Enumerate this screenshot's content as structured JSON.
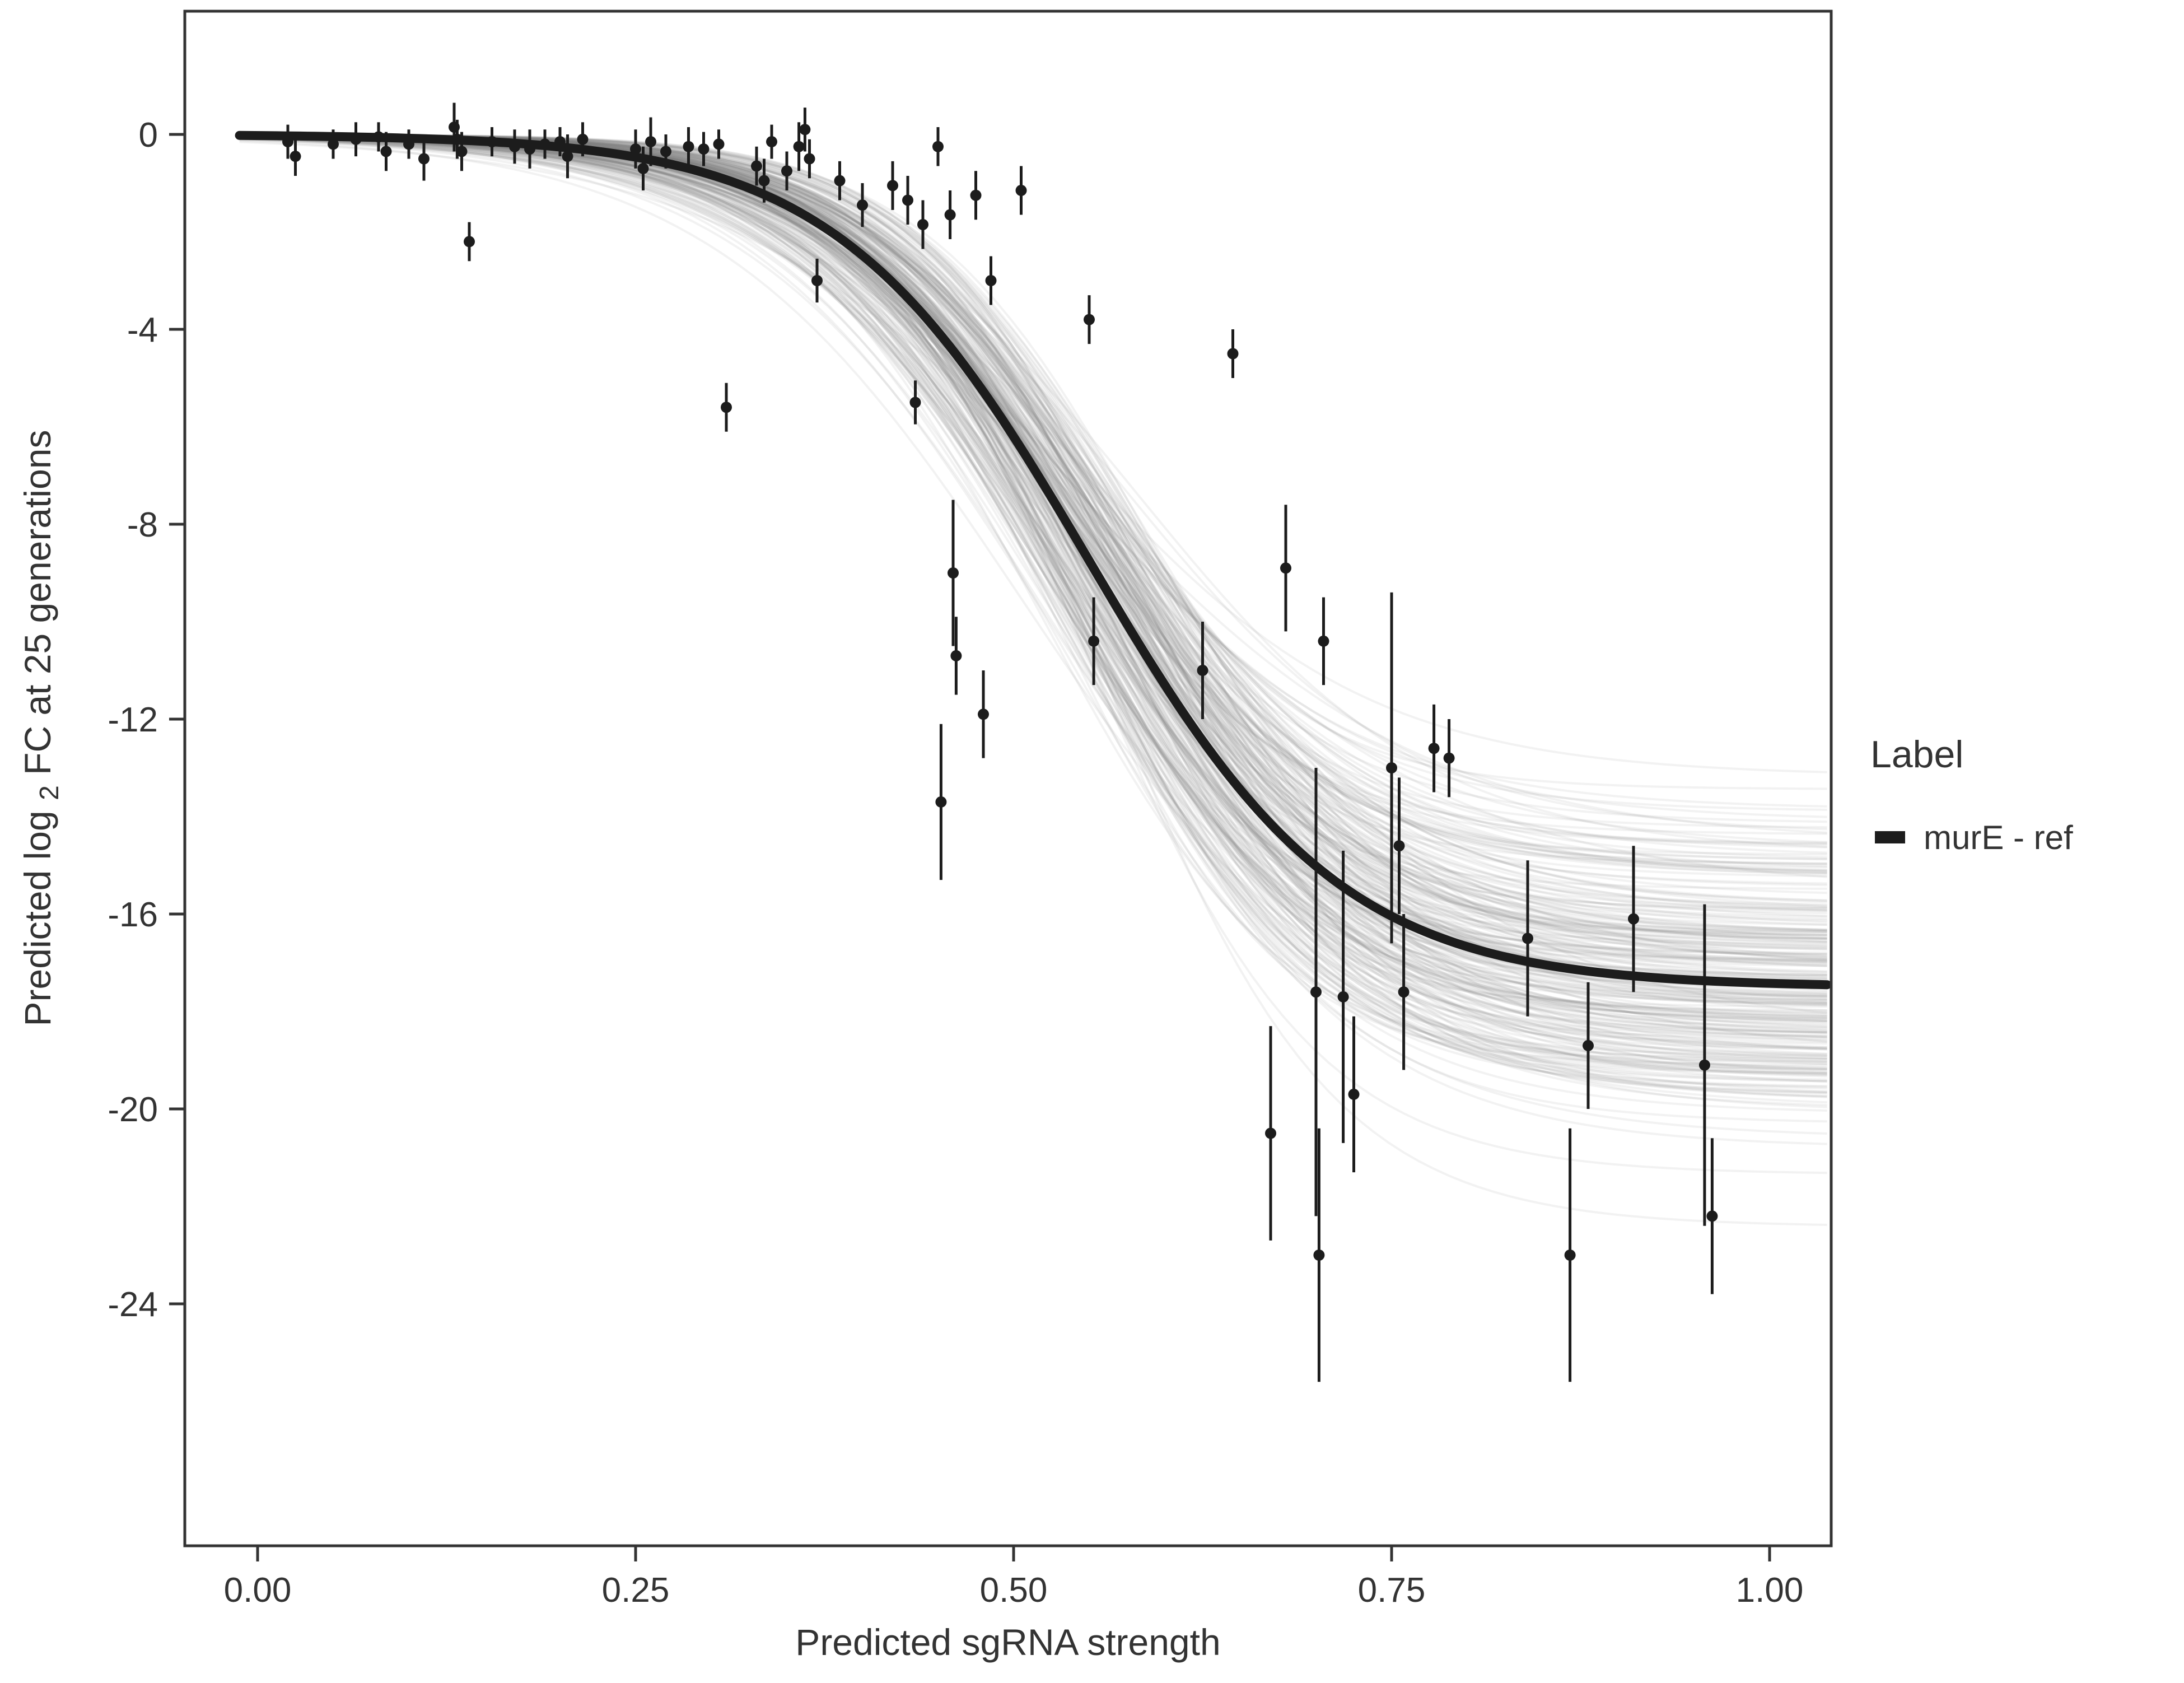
{
  "chart_data": {
    "type": "scatter",
    "title": "",
    "xlabel": "Predicted sgRNA strength",
    "ylabel_pre": "Predicted log",
    "ylabel_sub": "2",
    "ylabel_post": " FC at 25 generations",
    "xlim": [
      0,
      1
    ],
    "ylim": [
      -29,
      2.5
    ],
    "x_ticks": [
      0,
      0.25,
      0.5,
      0.75,
      1.0
    ],
    "x_tick_labels": [
      "0.00",
      "0.25",
      "0.50",
      "0.75",
      "1.00"
    ],
    "y_ticks": [
      0,
      -4,
      -8,
      -12,
      -16,
      -20,
      -24
    ],
    "y_tick_labels": [
      "0",
      "-4",
      "-8",
      "-12",
      "-16",
      "-20",
      "-24"
    ],
    "grid": false,
    "legend": {
      "position": "right",
      "title": "Label",
      "entries": [
        {
          "label": "murE - ref",
          "color": "#1c1c1c"
        }
      ]
    },
    "curve_fit": {
      "model": "logistic",
      "formula": "y = ymax / (1 + exp(-k*(x - x0)))",
      "ymax": -17.5,
      "x0": 0.55,
      "k": 12
    },
    "posterior_samples": {
      "count": 260,
      "ymax_sd": 1.5,
      "x0_sd": 0.02,
      "k_sd": 1.3,
      "seed": 42
    },
    "colors": {
      "fit": "#1c1c1c",
      "points": "#1c1c1c",
      "samples": "130,130,130",
      "samples_alpha": 0.1,
      "axis": "#333333"
    },
    "points": [
      [
        0.02,
        -0.15,
        0.35
      ],
      [
        0.025,
        -0.45,
        0.4
      ],
      [
        0.05,
        -0.2,
        0.3
      ],
      [
        0.065,
        -0.1,
        0.35
      ],
      [
        0.08,
        -0.05,
        0.3
      ],
      [
        0.085,
        -0.35,
        0.4
      ],
      [
        0.1,
        -0.2,
        0.3
      ],
      [
        0.11,
        -0.5,
        0.45
      ],
      [
        0.13,
        0.15,
        0.5
      ],
      [
        0.132,
        -0.1,
        0.4
      ],
      [
        0.135,
        -0.35,
        0.4
      ],
      [
        0.14,
        -2.2,
        0.4
      ],
      [
        0.155,
        -0.15,
        0.3
      ],
      [
        0.17,
        -0.25,
        0.35
      ],
      [
        0.18,
        -0.3,
        0.4
      ],
      [
        0.19,
        -0.2,
        0.3
      ],
      [
        0.2,
        -0.15,
        0.3
      ],
      [
        0.205,
        -0.45,
        0.45
      ],
      [
        0.215,
        -0.1,
        0.35
      ],
      [
        0.25,
        -0.3,
        0.4
      ],
      [
        0.255,
        -0.7,
        0.45
      ],
      [
        0.26,
        -0.15,
        0.5
      ],
      [
        0.27,
        -0.35,
        0.35
      ],
      [
        0.285,
        -0.25,
        0.4
      ],
      [
        0.295,
        -0.3,
        0.35
      ],
      [
        0.305,
        -0.2,
        0.3
      ],
      [
        0.31,
        -5.6,
        0.5
      ],
      [
        0.33,
        -0.65,
        0.4
      ],
      [
        0.335,
        -0.95,
        0.45
      ],
      [
        0.34,
        -0.15,
        0.35
      ],
      [
        0.35,
        -0.75,
        0.4
      ],
      [
        0.358,
        -0.25,
        0.5
      ],
      [
        0.362,
        0.1,
        0.45
      ],
      [
        0.365,
        -0.5,
        0.4
      ],
      [
        0.37,
        -3.0,
        0.45
      ],
      [
        0.385,
        -0.95,
        0.4
      ],
      [
        0.4,
        -1.45,
        0.45
      ],
      [
        0.42,
        -1.05,
        0.5
      ],
      [
        0.43,
        -1.35,
        0.5
      ],
      [
        0.435,
        -5.5,
        0.45
      ],
      [
        0.44,
        -1.85,
        0.5
      ],
      [
        0.45,
        -0.25,
        0.4
      ],
      [
        0.452,
        -13.7,
        1.6
      ],
      [
        0.458,
        -1.65,
        0.5
      ],
      [
        0.46,
        -9.0,
        1.5
      ],
      [
        0.462,
        -10.7,
        0.8
      ],
      [
        0.475,
        -1.25,
        0.5
      ],
      [
        0.48,
        -11.9,
        0.9
      ],
      [
        0.485,
        -3.0,
        0.5
      ],
      [
        0.505,
        -1.15,
        0.5
      ],
      [
        0.55,
        -3.8,
        0.5
      ],
      [
        0.553,
        -10.4,
        0.9
      ],
      [
        0.625,
        -11.0,
        1.0
      ],
      [
        0.645,
        -4.5,
        0.5
      ],
      [
        0.67,
        -20.5,
        2.2
      ],
      [
        0.68,
        -8.9,
        1.3
      ],
      [
        0.7,
        -17.6,
        4.6
      ],
      [
        0.702,
        -23.0,
        2.6
      ],
      [
        0.705,
        -10.4,
        0.9
      ],
      [
        0.718,
        -17.7,
        3.0
      ],
      [
        0.725,
        -19.7,
        1.6
      ],
      [
        0.75,
        -13.0,
        3.6
      ],
      [
        0.755,
        -14.6,
        1.4
      ],
      [
        0.758,
        -17.6,
        1.6
      ],
      [
        0.778,
        -12.6,
        0.9
      ],
      [
        0.788,
        -12.8,
        0.8
      ],
      [
        0.84,
        -16.5,
        1.6
      ],
      [
        0.868,
        -23.0,
        2.6
      ],
      [
        0.88,
        -18.7,
        1.3
      ],
      [
        0.91,
        -16.1,
        1.5
      ],
      [
        0.957,
        -19.1,
        3.3
      ],
      [
        0.962,
        -22.2,
        1.6
      ]
    ]
  }
}
